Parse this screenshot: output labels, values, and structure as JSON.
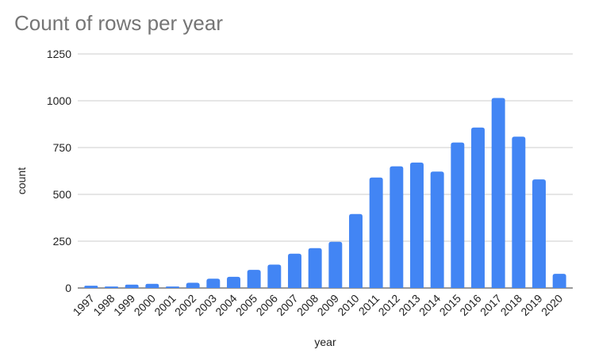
{
  "chart_data": {
    "type": "bar",
    "title": "Count of rows per year",
    "xlabel": "year",
    "ylabel": "count",
    "ylim": [
      0,
      1250
    ],
    "yticks": [
      "0",
      "250",
      "500",
      "750",
      "1000",
      "1250"
    ],
    "grid": true,
    "legend": "none",
    "bar_color": "#4285f4",
    "categories": [
      "1997",
      "1998",
      "1999",
      "2000",
      "2001",
      "2002",
      "2003",
      "2004",
      "2005",
      "2006",
      "2007",
      "2008",
      "2009",
      "2010",
      "2011",
      "2012",
      "2013",
      "2014",
      "2015",
      "2016",
      "2017",
      "2018",
      "2019",
      "2020"
    ],
    "series": [
      {
        "values": [
          12,
          8,
          18,
          22,
          8,
          28,
          50,
          60,
          97,
          125,
          183,
          213,
          247,
          395,
          590,
          650,
          670,
          622,
          777,
          857,
          1015,
          808,
          580,
          76
        ]
      }
    ]
  }
}
